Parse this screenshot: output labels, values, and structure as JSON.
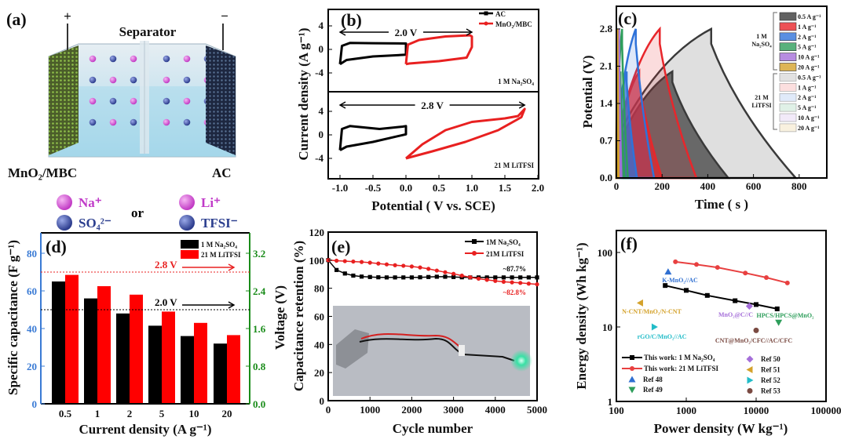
{
  "panel_a": {
    "panel_label": "(a)",
    "plus": "+",
    "minus": "−",
    "separator": "Separator",
    "left_electrode": "MnO₂/MBC",
    "right_electrode": "AC",
    "or": "or",
    "ions": [
      {
        "text": "Na⁺",
        "color": "#c03ac8"
      },
      {
        "text": "Li⁺",
        "color": "#c03ac8"
      },
      {
        "text": "SO₄²⁻",
        "color": "#2c3f8f"
      },
      {
        "text": "TFSI⁻",
        "color": "#2c3f8f"
      }
    ]
  },
  "chart_data": [
    {
      "type": "line",
      "panel_label": "(b)",
      "title": "",
      "xlabel": "Potential ( V vs. SCE)",
      "ylabel": "Current density (A g⁻¹)",
      "xlim": [
        -1.2,
        2.0
      ],
      "ylim": [
        -6,
        6
      ],
      "xticks": [
        "-1.0",
        "-0.5",
        "0.0",
        "0.5",
        "1.0",
        "1.5",
        "2.0"
      ],
      "yticks": [
        "4",
        "0",
        "-4"
      ],
      "legend": [
        "AC",
        "MnO₂/MBC"
      ],
      "subplots": [
        {
          "electrolyte": "1 M Na₂SO₄",
          "window_label": "2.0 V",
          "window": [
            -1.0,
            1.0
          ],
          "series": [
            {
              "name": "AC",
              "color": "#000000",
              "points": [
                [
                  -1,
                  -2.5
                ],
                [
                  -0.97,
                  0.6
                ],
                [
                  -0.85,
                  1.1
                ],
                [
                  -0.5,
                  1.05
                ],
                [
                  0,
                  1.0
                ],
                [
                  0,
                  -0.9
                ],
                [
                  -0.5,
                  -1.2
                ],
                [
                  -0.9,
                  -1.8
                ],
                [
                  -1,
                  -2.5
                ]
              ]
            },
            {
              "name": "MnO₂/MBC",
              "color": "#e82020",
              "points": [
                [
                  0,
                  -2.5
                ],
                [
                  0.03,
                  0.8
                ],
                [
                  0.2,
                  1.6
                ],
                [
                  0.6,
                  2.2
                ],
                [
                  0.97,
                  2.4
                ],
                [
                  1.0,
                  2.2
                ],
                [
                  1.0,
                  0.4
                ],
                [
                  0.92,
                  -1.4
                ],
                [
                  0.5,
                  -2.0
                ],
                [
                  0.05,
                  -2.4
                ],
                [
                  0,
                  -2.5
                ]
              ]
            }
          ]
        },
        {
          "electrolyte": "21 M LiTFSI",
          "window_label": "2.8 V",
          "window": [
            -1.0,
            1.8
          ],
          "series": [
            {
              "name": "AC",
              "color": "#000000",
              "points": [
                [
                  -1,
                  -2.6
                ],
                [
                  -0.97,
                  1.0
                ],
                [
                  -0.85,
                  1.5
                ],
                [
                  -0.4,
                  1.0
                ],
                [
                  -0.05,
                  1.4
                ],
                [
                  0,
                  1.5
                ],
                [
                  0,
                  0.1
                ],
                [
                  -0.5,
                  -1.2
                ],
                [
                  -0.9,
                  -2.0
                ],
                [
                  -1,
                  -2.6
                ]
              ]
            },
            {
              "name": "MnO₂/MBC",
              "color": "#e82020",
              "points": [
                [
                  0,
                  -4.0
                ],
                [
                  0.25,
                  -1.6
                ],
                [
                  0.6,
                  0.8
                ],
                [
                  1.0,
                  2.2
                ],
                [
                  1.5,
                  2.8
                ],
                [
                  1.7,
                  3.2
                ],
                [
                  1.8,
                  4.4
                ],
                [
                  1.75,
                  3.0
                ],
                [
                  1.4,
                  0.8
                ],
                [
                  0.9,
                  -1.2
                ],
                [
                  0.4,
                  -2.8
                ],
                [
                  0,
                  -4.0
                ]
              ]
            }
          ]
        }
      ]
    },
    {
      "type": "area",
      "panel_label": "(c)",
      "xlabel": "Time ( s )",
      "ylabel": "Potential (V)",
      "xlim": [
        0,
        920
      ],
      "ylim": [
        0,
        3.2
      ],
      "xticks": [
        "0",
        "200",
        "400",
        "600",
        "800"
      ],
      "yticks": [
        "0.0",
        "0.7",
        "1.4",
        "2.1",
        "2.8"
      ],
      "groups": [
        "1 M",
        "Na₂SO₄",
        "21 M",
        "LiTFSI"
      ],
      "series": [
        {
          "name": "0.5 A g⁻¹",
          "group": "Na2SO4",
          "vmax": 2.0,
          "peak_time": 245,
          "end_time": 490,
          "color": "#3a3a3a"
        },
        {
          "name": "1 A g⁻¹",
          "group": "Na2SO4",
          "vmax": 2.0,
          "peak_time": 100,
          "end_time": 200,
          "color": "#e8262b"
        },
        {
          "name": "2 A g⁻¹",
          "group": "Na2SO4",
          "vmax": 2.0,
          "peak_time": 45,
          "end_time": 90,
          "color": "#2f73d9"
        },
        {
          "name": "5 A g⁻¹",
          "group": "Na2SO4",
          "vmax": 2.0,
          "peak_time": 18,
          "end_time": 36,
          "color": "#2e9e5b"
        },
        {
          "name": "10 A g⁻¹",
          "group": "Na2SO4",
          "vmax": 2.0,
          "peak_time": 8,
          "end_time": 16,
          "color": "#a56fd9"
        },
        {
          "name": "20 A g⁻¹",
          "group": "Na2SO4",
          "vmax": 2.0,
          "peak_time": 3,
          "end_time": 6,
          "color": "#d4a22b"
        },
        {
          "name": "0.5 A g⁻¹",
          "group": "LiTFSI",
          "vmax": 2.8,
          "peak_time": 415,
          "end_time": 785,
          "color": "#3a3a3a"
        },
        {
          "name": "1 A g⁻¹",
          "group": "LiTFSI",
          "vmax": 2.8,
          "peak_time": 190,
          "end_time": 350,
          "color": "#e8262b"
        },
        {
          "name": "2 A g⁻¹",
          "group": "LiTFSI",
          "vmax": 2.8,
          "peak_time": 85,
          "end_time": 165,
          "color": "#2f73d9"
        },
        {
          "name": "5 A g⁻¹",
          "group": "LiTFSI",
          "vmax": 2.8,
          "peak_time": 25,
          "end_time": 50,
          "color": "#2e9e5b"
        },
        {
          "name": "10 A g⁻¹",
          "group": "LiTFSI",
          "vmax": 2.8,
          "peak_time": 12,
          "end_time": 22,
          "color": "#a56fd9"
        },
        {
          "name": "20 A g⁻¹",
          "group": "LiTFSI",
          "vmax": 2.8,
          "peak_time": 5,
          "end_time": 10,
          "color": "#d4a22b"
        }
      ]
    },
    {
      "type": "bar",
      "panel_label": "(d)",
      "xlabel": "Current density (A g⁻¹)",
      "ylabel": "Specific capacitance (F g⁻¹)",
      "ylabel_right": "Voltage (V)",
      "categories": [
        "0.5",
        "1",
        "2",
        "5",
        "10",
        "20"
      ],
      "ylim": [
        0,
        90
      ],
      "ylim_right": [
        0,
        3.6
      ],
      "yticks": [
        "0",
        "20",
        "40",
        "60",
        "80"
      ],
      "yticks_right": [
        "0.0",
        "0.8",
        "1.6",
        "2.4",
        "3.2"
      ],
      "series": [
        {
          "name": "1 M Na₂SO₄",
          "color": "#000000",
          "values": [
            65,
            56,
            48,
            41.5,
            36,
            32
          ]
        },
        {
          "name": "21 M LiTFSI",
          "color": "#ff0000",
          "values": [
            68.5,
            62.5,
            58,
            49,
            43,
            36.5
          ]
        }
      ],
      "voltage_lines": [
        {
          "label": "2.8 V",
          "value": 2.8,
          "color": "#e82020"
        },
        {
          "label": "2.0 V",
          "value": 2.0,
          "color": "#000000"
        }
      ],
      "left_axis_color": "#3a7bd5",
      "right_axis_color": "#1a8c1a"
    },
    {
      "type": "line",
      "panel_label": "(e)",
      "xlabel": "Cycle number",
      "ylabel": "Capacitance retention (%)",
      "xlim": [
        0,
        5000
      ],
      "ylim": [
        0,
        120
      ],
      "xticks": [
        "0",
        "1000",
        "2000",
        "3000",
        "4000",
        "5000"
      ],
      "yticks": [
        "0",
        "20",
        "40",
        "60",
        "80",
        "100",
        "120"
      ],
      "series": [
        {
          "name": "1M Na₂SO₄",
          "color": "#000000",
          "marker": "square",
          "x": [
            0,
            200,
            400,
            600,
            800,
            1000,
            1200,
            1400,
            1600,
            1800,
            2000,
            2200,
            2400,
            2600,
            2800,
            3000,
            3200,
            3400,
            3600,
            3800,
            4000,
            4200,
            4400,
            4600,
            4800,
            5000
          ],
          "y": [
            100,
            93,
            90.5,
            89,
            88.3,
            88,
            87.8,
            87.7,
            87.7,
            87.7,
            87.7,
            87.8,
            88,
            88.2,
            88.2,
            88,
            87.8,
            87.7,
            87.7,
            87.7,
            87.7,
            87.7,
            87.7,
            87.7,
            87.7,
            87.7
          ]
        },
        {
          "name": "21M LiTFSI",
          "color": "#e82020",
          "marker": "circle",
          "x": [
            0,
            200,
            400,
            600,
            800,
            1000,
            1200,
            1400,
            1600,
            1800,
            2000,
            2200,
            2400,
            2600,
            2800,
            3000,
            3200,
            3400,
            3600,
            3800,
            4000,
            4200,
            4400,
            4600,
            4800,
            5000
          ],
          "y": [
            100,
            99.6,
            99.3,
            99,
            98.7,
            98.2,
            97.6,
            97,
            96.4,
            96,
            95.5,
            94.8,
            93.8,
            92.6,
            91.4,
            90.3,
            89,
            87.8,
            86.8,
            86,
            85.2,
            84.6,
            84.2,
            83.8,
            83.3,
            82.8
          ]
        }
      ],
      "annotations": [
        {
          "text": "~87.7%",
          "color": "#000000"
        },
        {
          "text": "~82.8%",
          "color": "#e82020"
        }
      ]
    },
    {
      "type": "scatter",
      "panel_label": "(f)",
      "xlabel": "Power density (W kg⁻¹)",
      "ylabel": "Energy density (Wh kg⁻¹)",
      "xscale": "log",
      "yscale": "log",
      "xlim": [
        100,
        100000
      ],
      "ylim": [
        1,
        200
      ],
      "xticks": [
        "100",
        "1000",
        "10000",
        "100000"
      ],
      "yticks": [
        "1",
        "10",
        "100"
      ],
      "series": [
        {
          "name": "This work: 1 M Na₂SO₄",
          "color": "#000000",
          "marker": "square",
          "x": [
            500,
            1000,
            2000,
            5000,
            10000,
            20000
          ],
          "y": [
            36,
            31,
            26.5,
            22.5,
            20,
            17.5
          ]
        },
        {
          "name": "This work: 21 M LiTFSI",
          "color": "#e84040",
          "marker": "circle",
          "x": [
            700,
            1400,
            2800,
            7000,
            14000,
            28000
          ],
          "y": [
            75,
            69,
            63,
            53,
            46,
            39
          ]
        }
      ],
      "references": [
        {
          "name": "Ref 48",
          "label": "K-MnO₂//AC",
          "marker": "triangle-up",
          "color": "#2f6fd1",
          "x": 550,
          "y": 55
        },
        {
          "name": "Ref 49",
          "label": "HPCS/HPCS@MnO₂",
          "marker": "triangle-down",
          "color": "#2e9e5b",
          "x": 21000,
          "y": 11.5
        },
        {
          "name": "Ref 50",
          "label": "MnO₂@C//C",
          "marker": "diamond",
          "color": "#a56fd9",
          "x": 8000,
          "y": 19
        },
        {
          "name": "Ref 51",
          "label": "N-CNT/MnO₂/N-CNT",
          "marker": "triangle-left",
          "color": "#d4a22b",
          "x": 220,
          "y": 21
        },
        {
          "name": "Ref 52",
          "label": "rGO/C/MnO₂//AC",
          "marker": "triangle-right",
          "color": "#22bcc8",
          "x": 350,
          "y": 10
        },
        {
          "name": "Ref 53",
          "label": "CNT@MnO₂/CFC//AC/CFC",
          "marker": "circle",
          "color": "#7a4a42",
          "x": 10000,
          "y": 9
        }
      ]
    }
  ]
}
